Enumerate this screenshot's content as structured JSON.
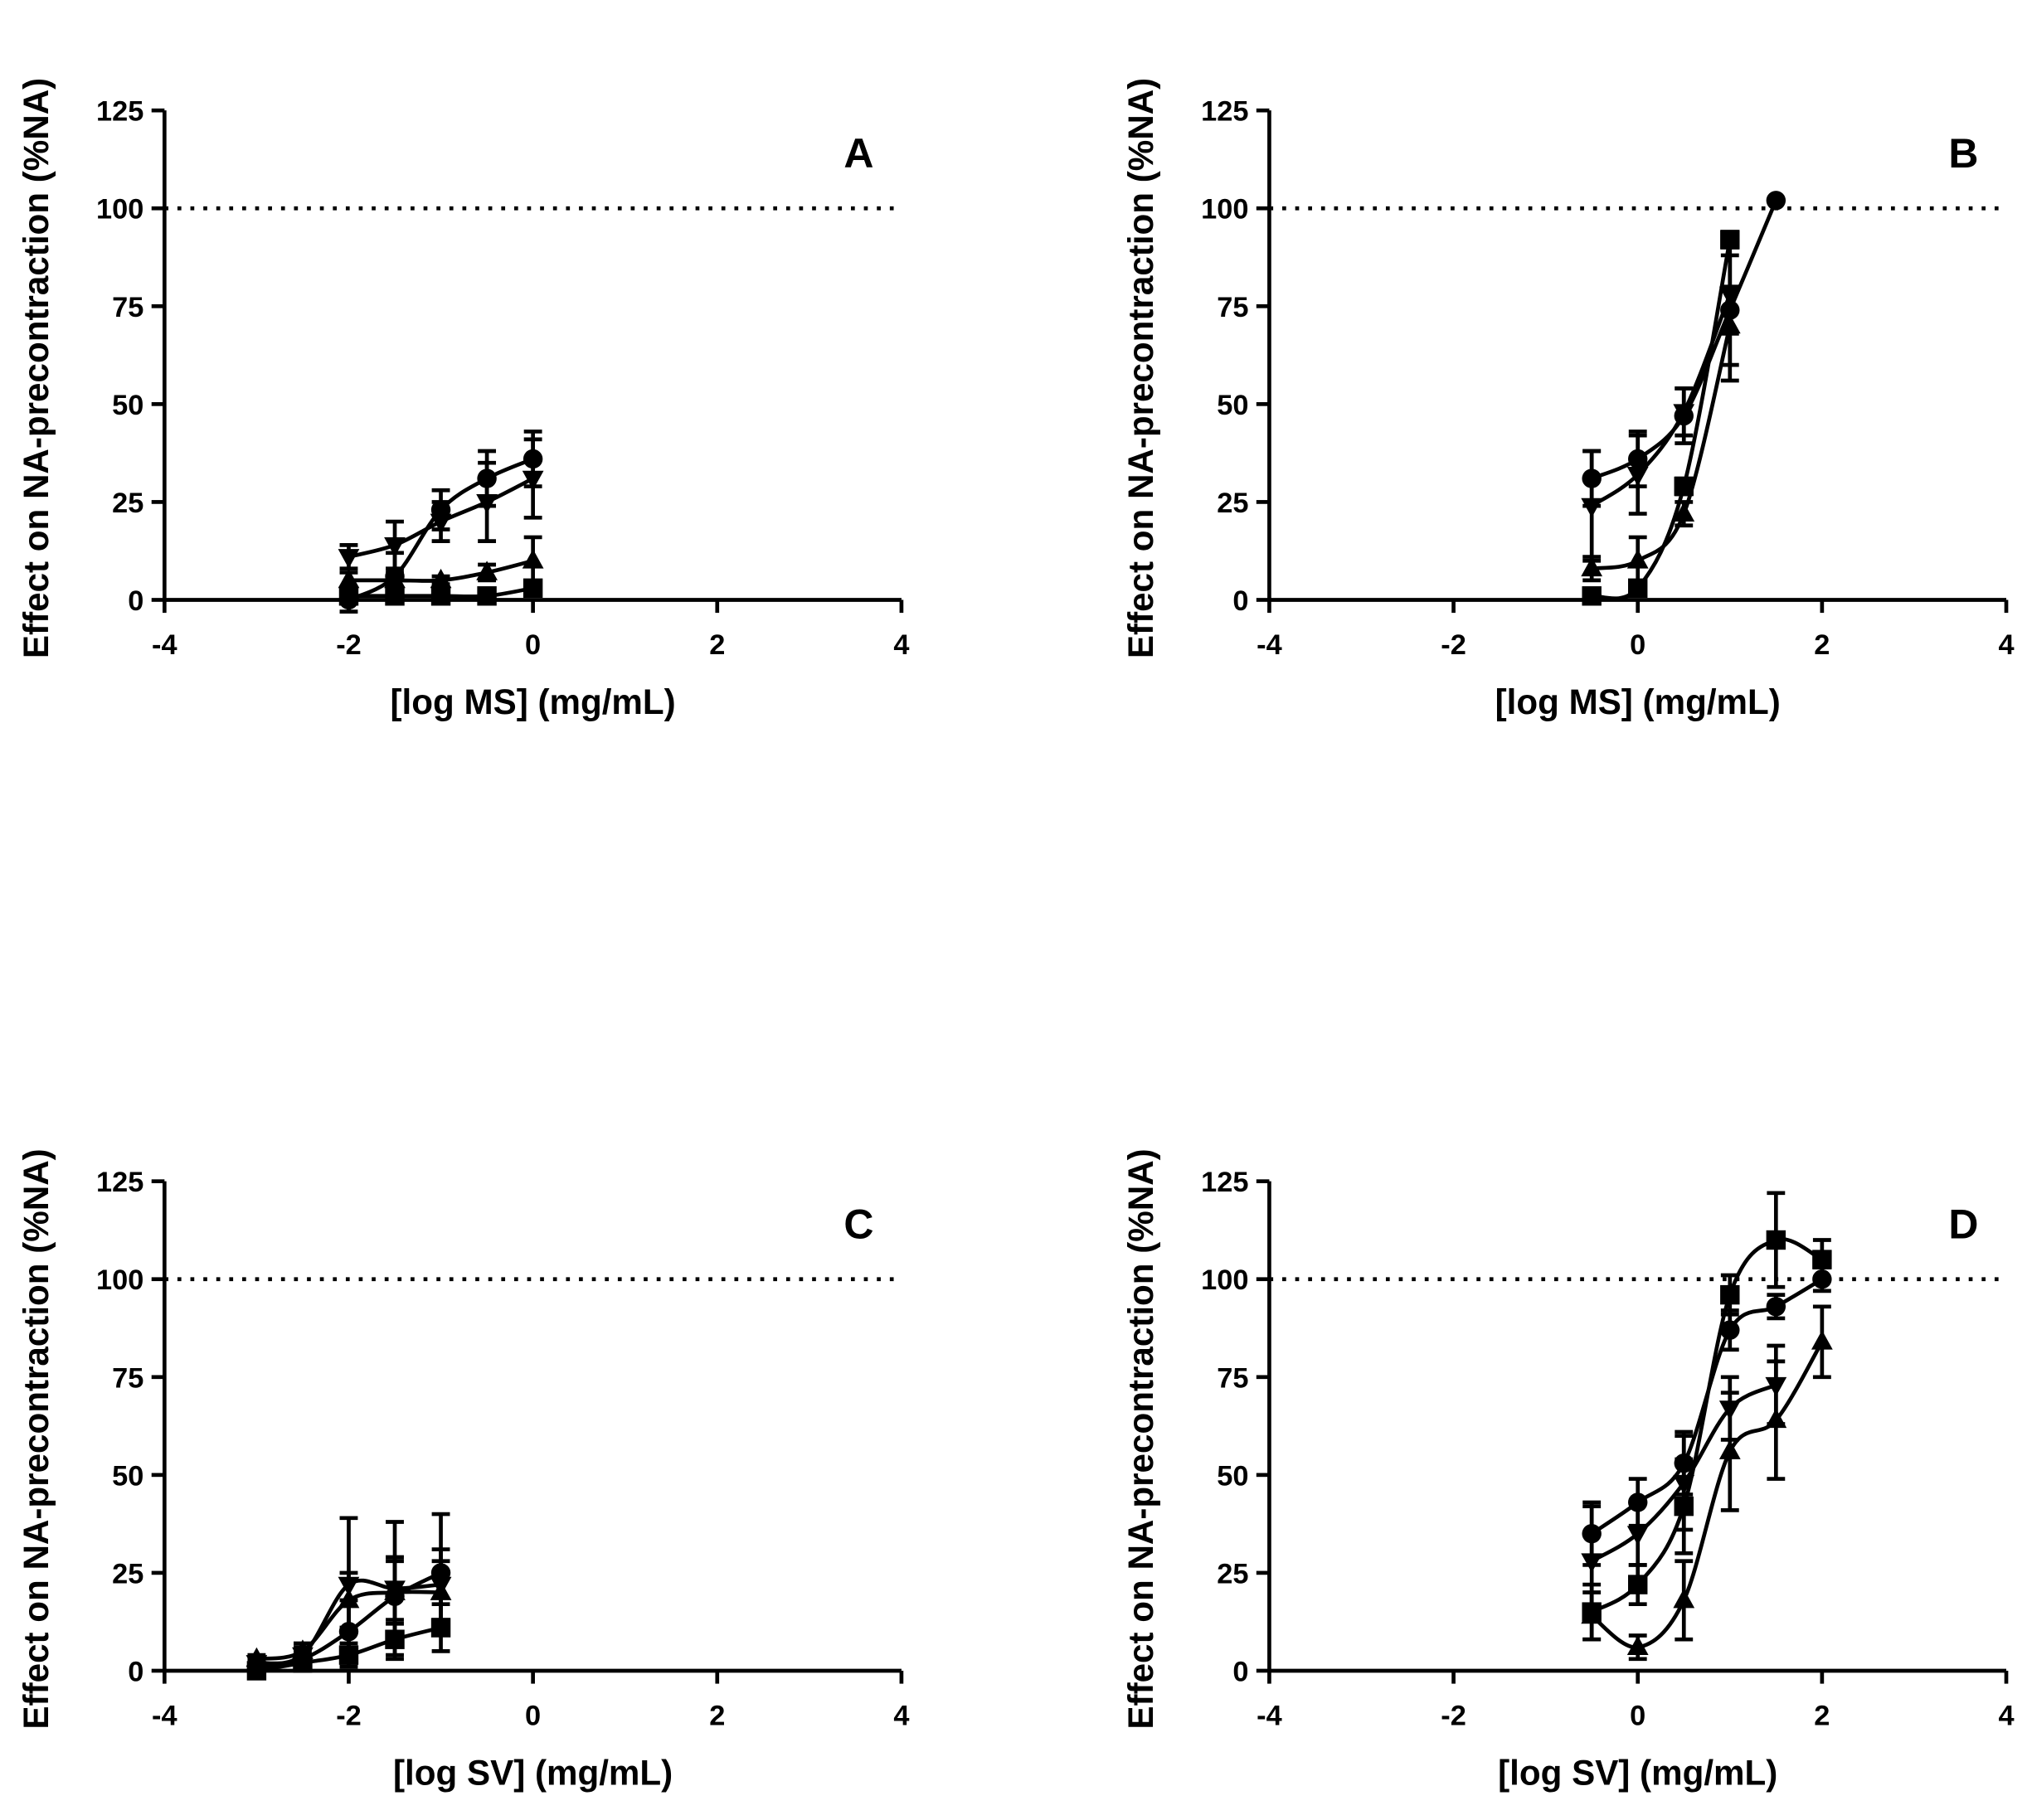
{
  "chart_data": [
    {
      "type": "scatter",
      "label": "A",
      "xlabel": "[log MS] (mg/mL)",
      "ylabel": "Effect on NA-precontraction (%NA)",
      "xlim": [
        -4,
        4
      ],
      "xticks": [
        -4,
        -2,
        0,
        2,
        4
      ],
      "ylim": [
        0,
        125
      ],
      "yticks": [
        0,
        25,
        50,
        75,
        100,
        125
      ],
      "reference_line": 100,
      "series": [
        {
          "marker": "circle",
          "color": "#000000",
          "x": [
            -2,
            -1.5,
            -1,
            -0.5,
            0
          ],
          "values": [
            0,
            6,
            23,
            31,
            36
          ],
          "errors": [
            3,
            6,
            5,
            7,
            7
          ]
        },
        {
          "marker": "triangle-down",
          "color": "#000000",
          "x": [
            -2,
            -1.5,
            -1,
            -0.5,
            0
          ],
          "values": [
            11,
            14,
            20,
            25,
            31
          ],
          "errors": [
            3,
            6,
            5,
            10,
            10
          ]
        },
        {
          "marker": "triangle-up",
          "color": "#000000",
          "x": [
            -2,
            -1.5,
            -1,
            -0.5,
            0
          ],
          "values": [
            5,
            5,
            5,
            7,
            10
          ],
          "errors": [
            2,
            2,
            1,
            2,
            6
          ]
        },
        {
          "marker": "square",
          "color": "#000000",
          "x": [
            -2,
            -1.5,
            -1,
            -0.5,
            0
          ],
          "values": [
            1,
            1,
            1,
            1,
            3
          ],
          "errors": [
            1,
            1,
            1,
            1,
            1
          ]
        }
      ]
    },
    {
      "type": "scatter",
      "label": "B",
      "xlabel": "[log MS] (mg/mL)",
      "ylabel": "Effect on NA-precontraction (%NA)",
      "xlim": [
        -4,
        4
      ],
      "xticks": [
        -4,
        -2,
        0,
        2,
        4
      ],
      "ylim": [
        0,
        125
      ],
      "yticks": [
        0,
        25,
        50,
        75,
        100,
        125
      ],
      "reference_line": 100,
      "series": [
        {
          "marker": "circle",
          "color": "#000000",
          "x": [
            -0.5,
            0,
            0.5,
            1,
            1.5
          ],
          "values": [
            31,
            36,
            47,
            74,
            102
          ],
          "errors": [
            7,
            7,
            7,
            18,
            0
          ]
        },
        {
          "marker": "triangle-down",
          "color": "#000000",
          "x": [
            -0.5,
            0,
            0.5,
            1
          ],
          "values": [
            24,
            32,
            48,
            78
          ],
          "errors": [
            14,
            10,
            6,
            10
          ]
        },
        {
          "marker": "triangle-up",
          "color": "#000000",
          "x": [
            -0.5,
            0,
            0.5,
            1
          ],
          "values": [
            8,
            10,
            22,
            70
          ],
          "errors": [
            3,
            6,
            3,
            10
          ]
        },
        {
          "marker": "square",
          "color": "#000000",
          "x": [
            -0.5,
            0,
            0.5,
            1
          ],
          "values": [
            1,
            3,
            29,
            92
          ],
          "errors": [
            1,
            1,
            2,
            2
          ]
        }
      ]
    },
    {
      "type": "scatter",
      "label": "C",
      "xlabel": "[log SV] (mg/mL)",
      "ylabel": "Effect on NA-precontraction (%NA)",
      "xlim": [
        -4,
        4
      ],
      "xticks": [
        -4,
        -2,
        0,
        2,
        4
      ],
      "ylim": [
        0,
        125
      ],
      "yticks": [
        0,
        25,
        50,
        75,
        100,
        125
      ],
      "reference_line": 100,
      "series": [
        {
          "marker": "circle",
          "color": "#000000",
          "x": [
            -3,
            -2.5,
            -2,
            -1.5,
            -1
          ],
          "values": [
            1,
            3,
            10,
            19,
            25
          ],
          "errors": [
            1,
            2,
            8,
            10,
            15
          ]
        },
        {
          "marker": "triangle-down",
          "color": "#000000",
          "x": [
            -3,
            -2.5,
            -2,
            -1.5,
            -1
          ],
          "values": [
            2,
            4,
            22,
            21,
            22
          ],
          "errors": [
            1,
            2,
            17,
            17,
            9
          ]
        },
        {
          "marker": "triangle-up",
          "color": "#000000",
          "x": [
            -3,
            -2.5,
            -2,
            -1.5,
            -1
          ],
          "values": [
            3,
            5,
            18,
            20,
            20
          ],
          "errors": [
            1,
            2,
            7,
            8,
            8
          ]
        },
        {
          "marker": "square",
          "color": "#000000",
          "x": [
            -3,
            -2.5,
            -2,
            -1.5,
            -1
          ],
          "values": [
            0,
            2,
            4,
            8,
            11
          ],
          "errors": [
            1,
            2,
            3,
            5,
            6
          ]
        }
      ]
    },
    {
      "type": "scatter",
      "label": "D",
      "xlabel": "[log SV] (mg/mL)",
      "ylabel": "Effect on NA-precontraction (%NA)",
      "xlim": [
        -4,
        4
      ],
      "xticks": [
        -4,
        -2,
        0,
        2,
        4
      ],
      "ylim": [
        0,
        125
      ],
      "yticks": [
        0,
        25,
        50,
        75,
        100,
        125
      ],
      "reference_line": 100,
      "series": [
        {
          "marker": "circle",
          "color": "#000000",
          "x": [
            -0.5,
            0,
            0.5,
            1,
            1.5,
            2
          ],
          "values": [
            35,
            43,
            53,
            87,
            93,
            100
          ],
          "errors": [
            8,
            6,
            8,
            5,
            3,
            3
          ]
        },
        {
          "marker": "square",
          "color": "#000000",
          "x": [
            -0.5,
            0,
            0.5,
            1,
            1.5,
            2
          ],
          "values": [
            15,
            22,
            42,
            96,
            110,
            105
          ],
          "errors": [
            7,
            5,
            12,
            5,
            12,
            5
          ]
        },
        {
          "marker": "triangle-down",
          "color": "#000000",
          "x": [
            -0.5,
            0,
            0.5,
            1,
            1.5
          ],
          "values": [
            28,
            35,
            48,
            67,
            73
          ],
          "errors": [
            14,
            8,
            12,
            8,
            10
          ]
        },
        {
          "marker": "triangle-up",
          "color": "#000000",
          "x": [
            -0.5,
            0,
            0.5,
            1,
            1.5,
            2
          ],
          "values": [
            14,
            6,
            18,
            56,
            64,
            84
          ],
          "errors": [
            6,
            3,
            10,
            15,
            15,
            9
          ]
        }
      ]
    }
  ]
}
